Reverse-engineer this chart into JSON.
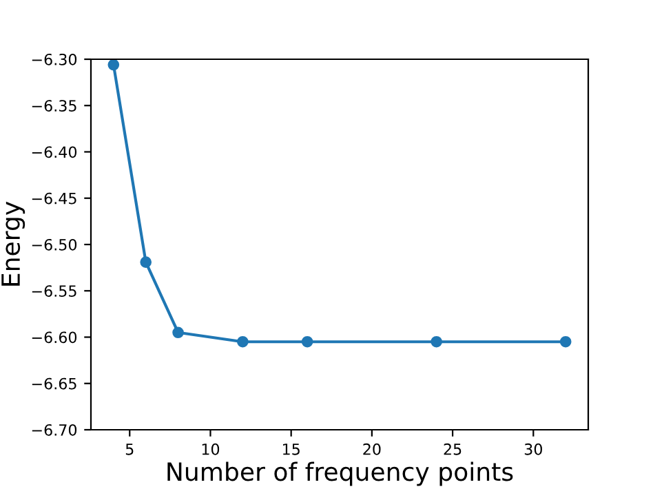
{
  "chart_data": {
    "type": "line",
    "xlabel": "Number of frequency points",
    "ylabel": "Energy",
    "x": [
      4,
      6,
      8,
      12,
      16,
      24,
      32
    ],
    "series": [
      {
        "color": "#1f77b4",
        "values": [
          -6.306,
          -6.519,
          -6.595,
          -6.605,
          -6.605,
          -6.605,
          -6.605
        ]
      }
    ],
    "xlim": [
      2.6,
      33.4
    ],
    "ylim": [
      -6.7,
      -6.3
    ],
    "xticks": [
      5,
      10,
      15,
      20,
      25,
      30
    ],
    "yticks": [
      {
        "value": -6.7,
        "label": "−6.70"
      },
      {
        "value": -6.65,
        "label": "−6.65"
      },
      {
        "value": -6.6,
        "label": "−6.60"
      },
      {
        "value": -6.55,
        "label": "−6.55"
      },
      {
        "value": -6.5,
        "label": "−6.50"
      },
      {
        "value": -6.45,
        "label": "−6.45"
      },
      {
        "value": -6.4,
        "label": "−6.40"
      },
      {
        "value": -6.35,
        "label": "−6.35"
      },
      {
        "value": -6.3,
        "label": "−6.30"
      }
    ],
    "marker": "circle",
    "grid": false,
    "legend": false
  }
}
